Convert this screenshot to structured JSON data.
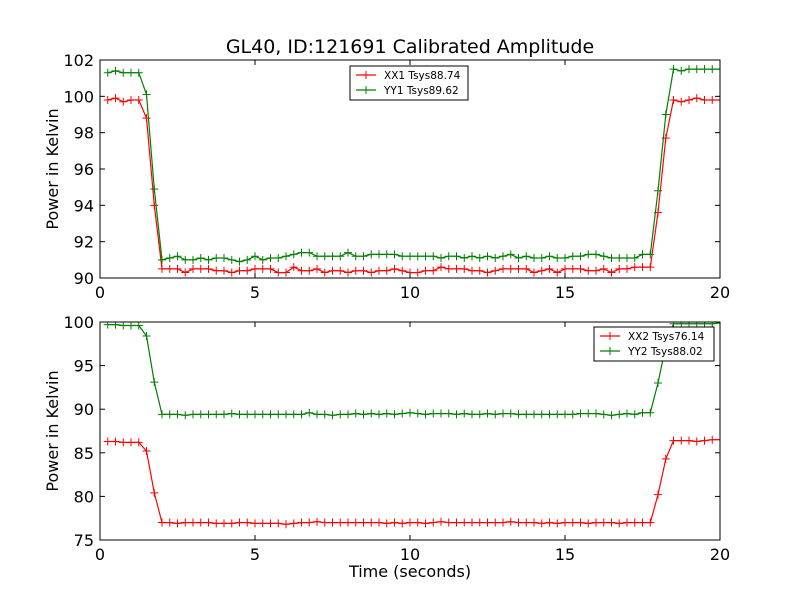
{
  "title": "GL40, ID:121691 Calibrated Amplitude",
  "colors": {
    "red": "#ff0000",
    "green": "#008000"
  },
  "chart_data": [
    {
      "type": "line",
      "xlabel": "",
      "ylabel": "Power in Kelvin",
      "xlim": [
        0,
        20
      ],
      "ylim": [
        90,
        102
      ],
      "xticks": [
        0,
        5,
        10,
        15,
        20
      ],
      "yticks": [
        90,
        92,
        94,
        96,
        98,
        100,
        102
      ],
      "legend_position": "upper-center",
      "x": [
        0.25,
        0.5,
        0.75,
        1.0,
        1.25,
        1.5,
        1.75,
        2.0,
        2.25,
        2.5,
        2.75,
        3.0,
        3.25,
        3.5,
        3.75,
        4.0,
        4.25,
        4.5,
        4.75,
        5.0,
        5.25,
        5.5,
        5.75,
        6.0,
        6.25,
        6.5,
        6.75,
        7.0,
        7.25,
        7.5,
        7.75,
        8.0,
        8.25,
        8.5,
        8.75,
        9.0,
        9.25,
        9.5,
        9.75,
        10.0,
        10.25,
        10.5,
        10.75,
        11.0,
        11.25,
        11.5,
        11.75,
        12.0,
        12.25,
        12.5,
        12.75,
        13.0,
        13.25,
        13.5,
        13.75,
        14.0,
        14.25,
        14.5,
        14.75,
        15.0,
        15.25,
        15.5,
        15.75,
        16.0,
        16.25,
        16.5,
        16.75,
        17.0,
        17.25,
        17.5,
        17.75,
        18.0,
        18.25,
        18.5,
        18.75,
        19.0,
        19.25,
        19.5,
        19.75,
        20.0
      ],
      "series": [
        {
          "name": "XX1 Tsys88.74",
          "color": "#ff0000",
          "values": [
            99.8,
            99.9,
            99.7,
            99.8,
            99.8,
            98.8,
            94.0,
            90.5,
            90.5,
            90.5,
            90.3,
            90.5,
            90.5,
            90.5,
            90.4,
            90.4,
            90.3,
            90.4,
            90.4,
            90.5,
            90.5,
            90.5,
            90.3,
            90.3,
            90.6,
            90.4,
            90.4,
            90.5,
            90.3,
            90.4,
            90.4,
            90.3,
            90.4,
            90.4,
            90.3,
            90.4,
            90.4,
            90.5,
            90.4,
            90.3,
            90.3,
            90.4,
            90.4,
            90.6,
            90.5,
            90.5,
            90.5,
            90.4,
            90.4,
            90.3,
            90.4,
            90.5,
            90.5,
            90.5,
            90.5,
            90.3,
            90.4,
            90.5,
            90.3,
            90.5,
            90.5,
            90.5,
            90.4,
            90.4,
            90.5,
            90.3,
            90.5,
            90.5,
            90.6,
            90.6,
            90.6,
            93.6,
            97.7,
            99.8,
            99.7,
            99.8,
            99.9,
            99.8,
            99.8,
            99.8
          ]
        },
        {
          "name": "YY1 Tsys89.62",
          "color": "#008000",
          "values": [
            101.3,
            101.4,
            101.3,
            101.3,
            101.3,
            100.1,
            94.9,
            91.0,
            91.1,
            91.2,
            91.0,
            91.0,
            91.1,
            91.0,
            91.1,
            91.1,
            91.0,
            90.9,
            91.0,
            91.2,
            91.0,
            91.1,
            91.1,
            91.2,
            91.3,
            91.4,
            91.4,
            91.2,
            91.2,
            91.2,
            91.2,
            91.4,
            91.2,
            91.2,
            91.3,
            91.3,
            91.3,
            91.3,
            91.2,
            91.2,
            91.2,
            91.2,
            91.2,
            91.1,
            91.2,
            91.2,
            91.1,
            91.2,
            91.1,
            91.2,
            91.1,
            91.2,
            91.3,
            91.1,
            91.2,
            91.1,
            91.1,
            91.2,
            91.1,
            91.1,
            91.2,
            91.2,
            91.3,
            91.3,
            91.2,
            91.1,
            91.1,
            91.1,
            91.1,
            91.3,
            91.3,
            94.8,
            99.0,
            101.5,
            101.4,
            101.5,
            101.5,
            101.5,
            101.5,
            101.5
          ]
        }
      ]
    },
    {
      "type": "line",
      "xlabel": "Time (seconds)",
      "ylabel": "Power in Kelvin",
      "xlim": [
        0,
        20
      ],
      "ylim": [
        75,
        100
      ],
      "xticks": [
        0,
        5,
        10,
        15,
        20
      ],
      "yticks": [
        75,
        80,
        85,
        90,
        95,
        100
      ],
      "legend_position": "top-right",
      "x": [
        0.25,
        0.5,
        0.75,
        1.0,
        1.25,
        1.5,
        1.75,
        2.0,
        2.25,
        2.5,
        2.75,
        3.0,
        3.25,
        3.5,
        3.75,
        4.0,
        4.25,
        4.5,
        4.75,
        5.0,
        5.25,
        5.5,
        5.75,
        6.0,
        6.25,
        6.5,
        6.75,
        7.0,
        7.25,
        7.5,
        7.75,
        8.0,
        8.25,
        8.5,
        8.75,
        9.0,
        9.25,
        9.5,
        9.75,
        10.0,
        10.25,
        10.5,
        10.75,
        11.0,
        11.25,
        11.5,
        11.75,
        12.0,
        12.25,
        12.5,
        12.75,
        13.0,
        13.25,
        13.5,
        13.75,
        14.0,
        14.25,
        14.5,
        14.75,
        15.0,
        15.25,
        15.5,
        15.75,
        16.0,
        16.25,
        16.5,
        16.75,
        17.0,
        17.25,
        17.5,
        17.75,
        18.0,
        18.25,
        18.5,
        18.75,
        19.0,
        19.25,
        19.5,
        19.75,
        20.0
      ],
      "series": [
        {
          "name": "XX2 Tsys76.14",
          "color": "#ff0000",
          "values": [
            86.3,
            86.3,
            86.2,
            86.2,
            86.2,
            85.2,
            80.4,
            77.0,
            77.0,
            76.9,
            77.0,
            77.0,
            77.0,
            77.0,
            76.9,
            76.9,
            76.9,
            77.0,
            77.0,
            76.9,
            76.9,
            76.9,
            76.9,
            76.8,
            76.9,
            77.0,
            77.0,
            77.1,
            77.0,
            77.0,
            77.0,
            77.0,
            77.0,
            77.0,
            77.0,
            77.0,
            76.9,
            77.0,
            76.9,
            77.0,
            77.0,
            76.9,
            77.0,
            77.1,
            77.0,
            77.0,
            77.0,
            77.0,
            77.0,
            77.0,
            77.0,
            77.0,
            77.1,
            77.0,
            77.0,
            77.0,
            76.9,
            77.0,
            76.9,
            77.0,
            77.0,
            77.0,
            76.9,
            77.0,
            77.0,
            77.0,
            76.9,
            77.0,
            77.0,
            77.0,
            77.0,
            80.2,
            84.3,
            86.4,
            86.4,
            86.4,
            86.3,
            86.4,
            86.5,
            86.5
          ]
        },
        {
          "name": "YY2 Tsys88.02",
          "color": "#008000",
          "values": [
            99.7,
            99.7,
            99.6,
            99.6,
            99.6,
            98.4,
            93.1,
            89.4,
            89.4,
            89.4,
            89.3,
            89.4,
            89.4,
            89.4,
            89.4,
            89.4,
            89.5,
            89.4,
            89.4,
            89.4,
            89.4,
            89.4,
            89.4,
            89.4,
            89.4,
            89.4,
            89.6,
            89.4,
            89.4,
            89.3,
            89.4,
            89.4,
            89.5,
            89.4,
            89.5,
            89.4,
            89.5,
            89.4,
            89.5,
            89.6,
            89.5,
            89.4,
            89.5,
            89.5,
            89.5,
            89.4,
            89.5,
            89.4,
            89.4,
            89.5,
            89.4,
            89.5,
            89.5,
            89.4,
            89.4,
            89.4,
            89.4,
            89.4,
            89.4,
            89.4,
            89.4,
            89.5,
            89.5,
            89.5,
            89.4,
            89.3,
            89.4,
            89.5,
            89.4,
            89.6,
            89.6,
            93.0,
            97.3,
            99.8,
            99.8,
            99.8,
            99.8,
            99.8,
            99.8,
            99.9
          ]
        }
      ]
    }
  ]
}
